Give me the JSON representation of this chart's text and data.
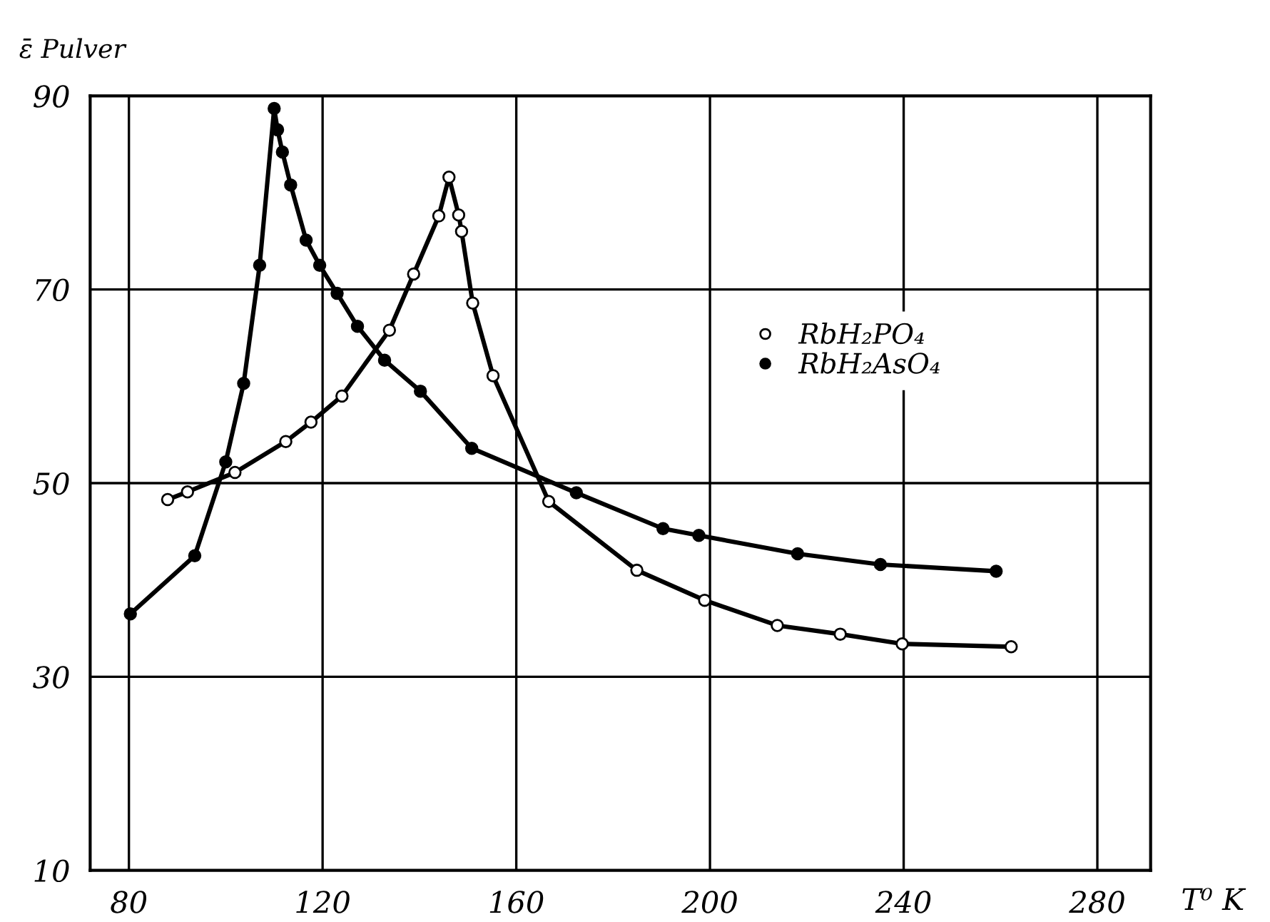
{
  "chart_data": {
    "type": "line",
    "ylabel": "ε̄ Pulver",
    "xlabel": "T⁰ K",
    "xlim": [
      72,
      291
    ],
    "ylim": [
      10,
      90
    ],
    "xticks": [
      80,
      120,
      160,
      200,
      240,
      280
    ],
    "yticks": [
      10,
      30,
      50,
      70,
      90
    ],
    "grid": true,
    "legend": "right",
    "marker": "circle",
    "line_style": "solid",
    "series": [
      {
        "name": "RbH₂PO₄",
        "color": "#000000",
        "colors": [
          "#ffffff",
          "#ffffff",
          "#ffffff",
          "#ffffff",
          "#ffffff",
          "#ffffff",
          "#ffffff",
          "#ffffff",
          "#ffffff",
          "#ffffff",
          "#ffffff",
          "#ffffff",
          "#ffffff",
          "#ffffff",
          "#ffffff",
          "#ffffff",
          "#ffffff",
          "#ffffff",
          "#ffffff",
          "#ffffff",
          "#ffffff"
        ],
        "x": [
          88.0,
          92.1,
          101.9,
          112.4,
          117.6,
          124.0,
          133.8,
          138.8,
          144.0,
          146.1,
          148.1,
          148.7,
          151.0,
          155.2,
          166.7,
          184.9,
          198.9,
          213.9,
          226.9,
          239.7,
          262.2
        ],
        "values": [
          48.3,
          49.1,
          51.1,
          54.3,
          56.3,
          59.0,
          65.8,
          71.6,
          77.6,
          81.6,
          77.7,
          76.0,
          68.6,
          61.1,
          48.1,
          41.0,
          37.9,
          35.3,
          34.4,
          33.4,
          33.1
        ]
      },
      {
        "name": "RbH₂AsO₄",
        "color": "#000000",
        "colors": [
          "#000000",
          "#000000",
          "#000000",
          "#000000",
          "#000000",
          "#000000",
          "#000000",
          "#000000",
          "#000000",
          "#000000",
          "#000000",
          "#000000",
          "#000000",
          "#000000",
          "#000000",
          "#000000",
          "#000000",
          "#000000",
          "#000000",
          "#000000",
          "#000000",
          "#000000"
        ],
        "x": [
          80.3,
          93.6,
          100.0,
          103.7,
          107.0,
          110.0,
          110.7,
          111.7,
          113.4,
          116.6,
          119.4,
          123.0,
          127.2,
          132.8,
          140.2,
          150.8,
          172.4,
          190.3,
          197.7,
          218.1,
          235.2,
          259.1
        ],
        "values": [
          36.5,
          42.5,
          52.2,
          60.3,
          72.5,
          88.7,
          86.5,
          84.2,
          80.8,
          75.1,
          72.5,
          69.6,
          66.2,
          62.7,
          59.5,
          53.6,
          49.0,
          45.3,
          44.6,
          42.7,
          41.6,
          40.9
        ]
      }
    ]
  }
}
